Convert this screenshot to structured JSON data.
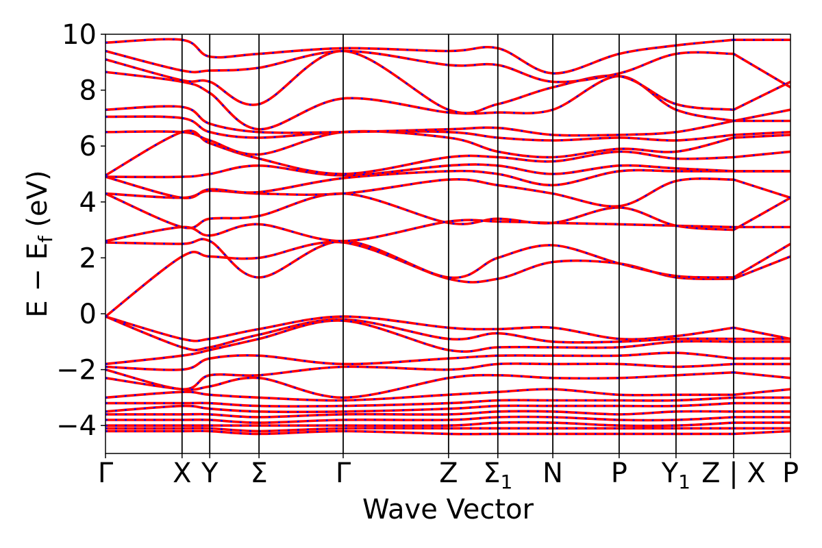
{
  "chart_data": {
    "type": "line",
    "title": "",
    "xlabel": "Wave Vector",
    "ylabel": "E − E_f (eV)",
    "ylabel_parts": {
      "main": "E − E",
      "sub": "f",
      "unit": " (eV)"
    },
    "ylim": [
      -5,
      10
    ],
    "yticks": [
      -4,
      -2,
      0,
      2,
      4,
      6,
      8,
      10
    ],
    "ytick_labels": [
      "−4",
      "−2",
      "0",
      "2",
      "4",
      "6",
      "8",
      "10"
    ],
    "kpath_positions": [
      0,
      0.202,
      0.275,
      0.405,
      0.627,
      0.905,
      1.035,
      1.18,
      1.355,
      1.505,
      1.657,
      1.807
    ],
    "kpath_labels": [
      {
        "main": "Γ",
        "sub": ""
      },
      {
        "main": "X",
        "sub": ""
      },
      {
        "main": "Y",
        "sub": ""
      },
      {
        "main": "Σ",
        "sub": ""
      },
      {
        "main": "Γ",
        "sub": ""
      },
      {
        "main": "Z",
        "sub": ""
      },
      {
        "main": "Σ",
        "sub": "1"
      },
      {
        "main": "N",
        "sub": ""
      },
      {
        "main": "P",
        "sub": ""
      },
      {
        "main": "Y",
        "sub": "1"
      },
      {
        "main": "Z | X",
        "sub": ""
      },
      {
        "main": "P",
        "sub": ""
      }
    ],
    "path_break_index": 10,
    "grid": false,
    "legend": "none",
    "series_styles": [
      {
        "color": "#ff0000",
        "style": "solid"
      },
      {
        "color": "#0000ff",
        "style": "dotted"
      }
    ],
    "bands": [
      [
        -0.1,
        -0.9,
        -0.9,
        -0.55,
        -0.1,
        -0.5,
        -0.55,
        -0.5,
        -0.9,
        -0.8,
        -0.5,
        -0.9,
        -0.9
      ],
      [
        -0.1,
        -1.2,
        -1.2,
        -0.75,
        -0.2,
        -0.9,
        -0.7,
        -1.0,
        -1.0,
        -0.9,
        -0.9,
        -0.9,
        -0.9
      ],
      [
        -1.8,
        -1.5,
        -1.3,
        -0.9,
        -0.25,
        -1.3,
        -1.2,
        -1.2,
        -1.2,
        -1.0,
        -1.0,
        -1.0,
        -1.0
      ],
      [
        -1.9,
        -2.0,
        -1.6,
        -1.5,
        -1.8,
        -1.6,
        -1.5,
        -1.5,
        -1.5,
        -1.4,
        -1.6,
        -1.6,
        -1.6
      ],
      [
        -2.0,
        -2.7,
        -2.2,
        -2.2,
        -1.9,
        -2.0,
        -1.8,
        -1.8,
        -1.8,
        -1.9,
        -1.8,
        -1.8,
        -1.8
      ],
      [
        -2.3,
        -2.7,
        -2.6,
        -2.3,
        -3.0,
        -2.3,
        -2.2,
        -2.3,
        -2.3,
        -2.2,
        -2.1,
        -2.3,
        -2.4
      ],
      [
        -3.0,
        -2.8,
        -2.9,
        -3.0,
        -3.1,
        -2.9,
        -2.8,
        -2.7,
        -2.9,
        -2.9,
        -2.9,
        -2.7,
        -2.7
      ],
      [
        -3.2,
        -3.2,
        -3.2,
        -3.3,
        -3.3,
        -3.2,
        -3.1,
        -3.1,
        -3.1,
        -3.1,
        -3.0,
        -3.0,
        -3.0
      ],
      [
        -3.5,
        -3.3,
        -3.4,
        -3.5,
        -3.5,
        -3.4,
        -3.3,
        -3.3,
        -3.3,
        -3.3,
        -3.2,
        -3.2,
        -3.2
      ],
      [
        -3.6,
        -3.6,
        -3.6,
        -3.7,
        -3.6,
        -3.6,
        -3.5,
        -3.5,
        -3.6,
        -3.5,
        -3.5,
        -3.5,
        -3.5
      ],
      [
        -3.8,
        -3.8,
        -3.8,
        -3.9,
        -3.8,
        -3.8,
        -3.7,
        -3.7,
        -3.8,
        -3.8,
        -3.7,
        -3.7,
        -3.7
      ],
      [
        -4.0,
        -4.0,
        -4.0,
        -4.0,
        -4.0,
        -4.0,
        -3.9,
        -3.9,
        -4.0,
        -4.0,
        -3.9,
        -3.9,
        -3.9
      ],
      [
        -4.1,
        -4.1,
        -4.1,
        -4.2,
        -4.1,
        -4.1,
        -4.1,
        -4.1,
        -4.1,
        -4.1,
        -4.1,
        -4.1,
        -4.1
      ],
      [
        -4.2,
        -4.2,
        -4.2,
        -4.3,
        -4.2,
        -4.3,
        -4.3,
        -4.3,
        -4.3,
        -4.3,
        -4.3,
        -4.2,
        -4.2
      ],
      [
        -0.1,
        2.05,
        2.05,
        2.0,
        2.55,
        1.25,
        1.25,
        1.85,
        1.8,
        1.3,
        1.25,
        2.05,
        1.8
      ],
      [
        2.55,
        2.5,
        2.6,
        1.3,
        2.6,
        1.3,
        2.0,
        2.45,
        1.8,
        1.35,
        1.3,
        2.5,
        2.5
      ],
      [
        2.6,
        3.1,
        2.8,
        3.2,
        2.6,
        3.3,
        3.3,
        3.25,
        3.2,
        3.15,
        3.1,
        3.1,
        3.2
      ],
      [
        4.3,
        3.1,
        3.4,
        3.5,
        4.3,
        3.25,
        3.4,
        3.25,
        3.8,
        3.15,
        3.0,
        4.15,
        3.8
      ],
      [
        4.3,
        4.15,
        4.4,
        4.3,
        4.3,
        4.8,
        4.6,
        4.3,
        3.85,
        4.75,
        4.8,
        4.15,
        5.0
      ],
      [
        4.9,
        4.15,
        4.45,
        4.35,
        4.85,
        5.1,
        5.0,
        4.6,
        5.1,
        5.1,
        5.1,
        5.1,
        5.0
      ],
      [
        4.9,
        4.9,
        5.0,
        5.3,
        4.95,
        5.3,
        5.3,
        5.0,
        5.3,
        5.2,
        5.1,
        5.1,
        5.0
      ],
      [
        4.95,
        6.5,
        6.1,
        5.55,
        5.0,
        5.6,
        5.6,
        5.45,
        5.8,
        5.55,
        5.6,
        5.8,
        5.9
      ],
      [
        6.5,
        6.5,
        6.2,
        5.7,
        6.5,
        6.3,
        5.8,
        5.6,
        5.9,
        5.8,
        6.3,
        6.4,
        6.3
      ],
      [
        7.05,
        7.0,
        6.5,
        6.3,
        6.5,
        6.5,
        6.3,
        6.2,
        6.3,
        6.2,
        6.4,
        6.5,
        6.5
      ],
      [
        7.3,
        7.4,
        6.8,
        6.5,
        6.5,
        6.6,
        6.65,
        6.4,
        6.4,
        6.5,
        6.9,
        6.9,
        6.6
      ],
      [
        8.65,
        8.3,
        7.9,
        6.6,
        7.7,
        7.2,
        7.2,
        7.3,
        8.5,
        7.3,
        6.9,
        7.3,
        7.0
      ],
      [
        9.1,
        8.35,
        8.3,
        7.5,
        9.4,
        7.3,
        7.5,
        8.1,
        8.5,
        7.5,
        7.3,
        8.3,
        8.5
      ],
      [
        9.4,
        8.7,
        8.7,
        8.8,
        9.4,
        8.9,
        8.9,
        8.3,
        8.6,
        9.3,
        9.3,
        8.1,
        8.6
      ],
      [
        9.7,
        9.8,
        9.2,
        9.3,
        9.5,
        9.4,
        9.5,
        8.6,
        9.3,
        9.6,
        9.8,
        9.8,
        9.3
      ]
    ]
  }
}
